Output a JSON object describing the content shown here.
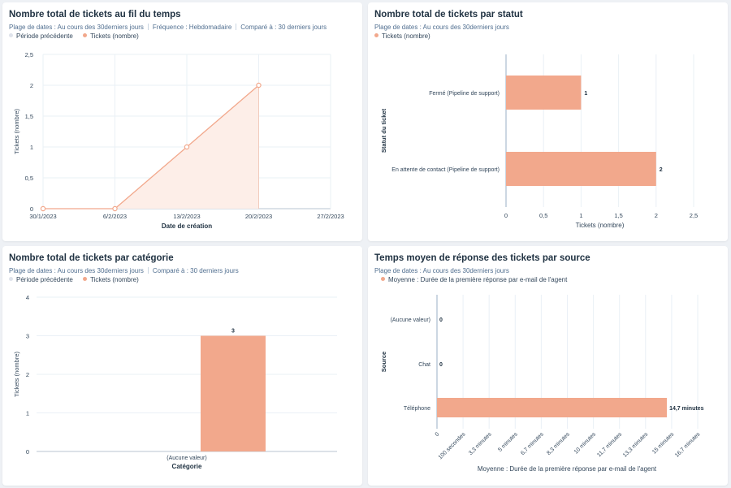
{
  "colors": {
    "series": "#f2a88c",
    "previous": "#dfe3eb",
    "fill": "#fdeee8",
    "grid": "#eaf0f6",
    "axis": "#516f90",
    "text": "#33475b"
  },
  "cards": [
    {
      "title": "Nombre total de tickets au fil du temps",
      "meta": [
        "Plage de dates : Au cours des 30derniers jours",
        "Fréquence : Hebdomadaire",
        "Comparé à : 30 derniers jours"
      ],
      "legend": [
        "Période précédente",
        "Tickets (nombre)"
      ]
    },
    {
      "title": "Nombre total de tickets par statut",
      "meta": [
        "Plage de dates : Au cours des 30derniers jours"
      ],
      "legend": [
        "Tickets (nombre)"
      ]
    },
    {
      "title": "Nombre total de tickets par catégorie",
      "meta": [
        "Plage de dates : Au cours des 30derniers jours",
        "Comparé à : 30 derniers jours"
      ],
      "legend": [
        "Période précédente",
        "Tickets (nombre)"
      ]
    },
    {
      "title": "Temps moyen de réponse des tickets par source",
      "meta": [
        "Plage de dates : Au cours des 30derniers jours"
      ],
      "legend": [
        "Moyenne : Durée de la première réponse par e-mail de l'agent"
      ]
    }
  ],
  "chart_data": [
    {
      "type": "area",
      "title": "Nombre total de tickets au fil du temps",
      "xlabel": "Date de création",
      "ylabel": "Tickets (nombre)",
      "categories": [
        "30/1/2023",
        "6/2/2023",
        "13/2/2023",
        "20/2/2023",
        "27/2/2023"
      ],
      "series": [
        {
          "name": "Tickets (nombre)",
          "values": [
            0,
            0,
            1,
            2,
            null
          ]
        }
      ],
      "yticks": [
        "0",
        "0,5",
        "1",
        "1,5",
        "2",
        "2,5"
      ],
      "ylim": [
        0,
        2.5
      ],
      "grid": true,
      "legend_position": "top-left"
    },
    {
      "type": "bar",
      "orientation": "horizontal",
      "title": "Nombre total de tickets par statut",
      "xlabel": "Tickets (nombre)",
      "ylabel": "Statut du ticket",
      "categories": [
        "Fermé (Pipeline de support)",
        "En attente de contact (Pipeline de support)"
      ],
      "series": [
        {
          "name": "Tickets (nombre)",
          "values": [
            1,
            2
          ]
        }
      ],
      "data_labels": [
        "1",
        "2"
      ],
      "xticks": [
        "0",
        "0,5",
        "1",
        "1,5",
        "2",
        "2,5"
      ],
      "xlim": [
        0,
        2.5
      ],
      "grid": true
    },
    {
      "type": "bar",
      "title": "Nombre total de tickets par catégorie",
      "xlabel": "Catégorie",
      "ylabel": "Tickets (nombre)",
      "categories": [
        "(Aucune valeur)"
      ],
      "series": [
        {
          "name": "Tickets (nombre)",
          "values": [
            3
          ]
        }
      ],
      "data_labels": [
        "3"
      ],
      "yticks": [
        "0",
        "1",
        "2",
        "3",
        "4"
      ],
      "ylim": [
        0,
        4
      ],
      "grid": true
    },
    {
      "type": "bar",
      "orientation": "horizontal",
      "title": "Temps moyen de réponse des tickets par source",
      "xlabel": "Moyenne : Durée de la première réponse par e-mail de l'agent",
      "ylabel": "Source",
      "categories": [
        "(Aucune valeur)",
        "Chat",
        "Téléphone"
      ],
      "series": [
        {
          "name": "Moyenne : Durée de la première réponse par e-mail de l'agent",
          "values": [
            0,
            0,
            14.7
          ]
        }
      ],
      "data_labels": [
        "0",
        "0",
        "14,7 minutes"
      ],
      "xticks": [
        "0",
        "100 secondes",
        "3,3 minutes",
        "5 minutes",
        "6,7 minutes",
        "8,3 minutes",
        "10 minutes",
        "11,7 minutes",
        "13,3 minutes",
        "15 minutes",
        "16,7 minutes"
      ],
      "xlim": [
        0,
        16.67
      ],
      "grid": true
    }
  ]
}
